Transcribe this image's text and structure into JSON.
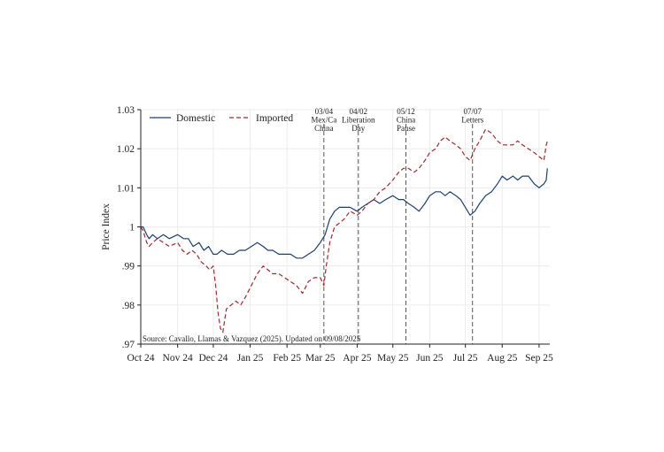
{
  "chart_data": {
    "type": "line",
    "title": "",
    "xlabel": "",
    "ylabel": "Price Index",
    "ylim": [
      0.97,
      1.03
    ],
    "y_ticks": [
      0.97,
      0.98,
      0.99,
      1.0,
      1.01,
      1.02,
      1.03
    ],
    "y_tick_labels": [
      ".97",
      ".98",
      ".99",
      "1",
      "1.01",
      "1.02",
      "1.03"
    ],
    "x_tick_labels": [
      "Oct 24",
      "Nov 24",
      "Dec 24",
      "Jan 25",
      "Feb 25",
      "Mar 25",
      "Apr 25",
      "May 25",
      "Jun 25",
      "Jul 25",
      "Aug 25",
      "Sep 25"
    ],
    "x_tick_dates": [
      "2024-10-01",
      "2024-11-01",
      "2024-12-01",
      "2025-01-01",
      "2025-02-01",
      "2025-03-01",
      "2025-04-01",
      "2025-05-01",
      "2025-06-01",
      "2025-07-01",
      "2025-08-01",
      "2025-09-01"
    ],
    "xlim": [
      "2024-10-01",
      "2025-09-10"
    ],
    "grid": true,
    "legend_position": "top-left",
    "series": [
      {
        "name": "Domestic",
        "style": "solid",
        "color": "#1f3f6e",
        "x": [
          "2024-10-01",
          "2024-10-03",
          "2024-10-06",
          "2024-10-08",
          "2024-10-11",
          "2024-10-15",
          "2024-10-20",
          "2024-10-25",
          "2024-11-01",
          "2024-11-06",
          "2024-11-10",
          "2024-11-14",
          "2024-11-19",
          "2024-11-23",
          "2024-11-27",
          "2024-12-01",
          "2024-12-04",
          "2024-12-08",
          "2024-12-13",
          "2024-12-18",
          "2024-12-23",
          "2024-12-28",
          "2025-01-02",
          "2025-01-07",
          "2025-01-12",
          "2025-01-16",
          "2025-01-20",
          "2025-01-25",
          "2025-01-30",
          "2025-02-04",
          "2025-02-09",
          "2025-02-14",
          "2025-02-19",
          "2025-02-24",
          "2025-03-01",
          "2025-03-05",
          "2025-03-09",
          "2025-03-13",
          "2025-03-17",
          "2025-03-21",
          "2025-03-26",
          "2025-04-01",
          "2025-04-05",
          "2025-04-10",
          "2025-04-15",
          "2025-04-20",
          "2025-04-25",
          "2025-05-01",
          "2025-05-06",
          "2025-05-10",
          "2025-05-14",
          "2025-05-19",
          "2025-05-23",
          "2025-05-28",
          "2025-06-01",
          "2025-06-06",
          "2025-06-10",
          "2025-06-14",
          "2025-06-18",
          "2025-06-23",
          "2025-06-27",
          "2025-07-01",
          "2025-07-05",
          "2025-07-09",
          "2025-07-13",
          "2025-07-18",
          "2025-07-23",
          "2025-07-28",
          "2025-08-01",
          "2025-08-05",
          "2025-08-10",
          "2025-08-14",
          "2025-08-18",
          "2025-08-23",
          "2025-08-28",
          "2025-09-01",
          "2025-09-05",
          "2025-09-07",
          "2025-09-08"
        ],
        "values": [
          1.0,
          1.0,
          0.998,
          0.997,
          0.998,
          0.997,
          0.998,
          0.997,
          0.998,
          0.997,
          0.997,
          0.995,
          0.996,
          0.994,
          0.995,
          0.993,
          0.993,
          0.994,
          0.993,
          0.993,
          0.994,
          0.994,
          0.995,
          0.996,
          0.995,
          0.994,
          0.994,
          0.993,
          0.993,
          0.993,
          0.992,
          0.992,
          0.993,
          0.994,
          0.996,
          0.998,
          1.002,
          1.004,
          1.005,
          1.005,
          1.005,
          1.004,
          1.005,
          1.006,
          1.007,
          1.006,
          1.007,
          1.008,
          1.007,
          1.007,
          1.006,
          1.005,
          1.004,
          1.006,
          1.008,
          1.009,
          1.009,
          1.008,
          1.009,
          1.008,
          1.007,
          1.005,
          1.003,
          1.004,
          1.006,
          1.008,
          1.009,
          1.011,
          1.013,
          1.012,
          1.013,
          1.012,
          1.013,
          1.013,
          1.011,
          1.01,
          1.011,
          1.012,
          1.015
        ]
      },
      {
        "name": "Imported",
        "style": "dashed",
        "color": "#9b2a2e",
        "x": [
          "2024-10-01",
          "2024-10-03",
          "2024-10-06",
          "2024-10-08",
          "2024-10-11",
          "2024-10-15",
          "2024-10-20",
          "2024-10-25",
          "2024-11-01",
          "2024-11-05",
          "2024-11-09",
          "2024-11-13",
          "2024-11-17",
          "2024-11-21",
          "2024-11-25",
          "2024-11-28",
          "2024-12-01",
          "2024-12-03",
          "2024-12-05",
          "2024-12-07",
          "2024-12-09",
          "2024-12-12",
          "2024-12-16",
          "2024-12-20",
          "2024-12-24",
          "2024-12-28",
          "2025-01-02",
          "2025-01-07",
          "2025-01-12",
          "2025-01-16",
          "2025-01-20",
          "2025-01-25",
          "2025-01-30",
          "2025-02-04",
          "2025-02-09",
          "2025-02-14",
          "2025-02-19",
          "2025-02-24",
          "2025-03-01",
          "2025-03-04",
          "2025-03-06",
          "2025-03-09",
          "2025-03-13",
          "2025-03-17",
          "2025-03-21",
          "2025-03-26",
          "2025-04-01",
          "2025-04-05",
          "2025-04-10",
          "2025-04-15",
          "2025-04-20",
          "2025-04-25",
          "2025-05-01",
          "2025-05-06",
          "2025-05-10",
          "2025-05-14",
          "2025-05-19",
          "2025-05-23",
          "2025-05-28",
          "2025-06-01",
          "2025-06-06",
          "2025-06-10",
          "2025-06-14",
          "2025-06-18",
          "2025-06-23",
          "2025-06-27",
          "2025-07-01",
          "2025-07-05",
          "2025-07-09",
          "2025-07-13",
          "2025-07-18",
          "2025-07-23",
          "2025-07-28",
          "2025-08-01",
          "2025-08-05",
          "2025-08-10",
          "2025-08-14",
          "2025-08-18",
          "2025-08-23",
          "2025-08-28",
          "2025-09-01",
          "2025-09-05",
          "2025-09-07",
          "2025-09-08"
        ],
        "values": [
          1.0,
          0.999,
          0.996,
          0.995,
          0.996,
          0.997,
          0.996,
          0.995,
          0.996,
          0.994,
          0.993,
          0.994,
          0.993,
          0.991,
          0.99,
          0.989,
          0.99,
          0.985,
          0.978,
          0.974,
          0.973,
          0.979,
          0.98,
          0.981,
          0.98,
          0.982,
          0.985,
          0.988,
          0.99,
          0.989,
          0.988,
          0.988,
          0.987,
          0.986,
          0.985,
          0.983,
          0.986,
          0.987,
          0.987,
          0.985,
          0.99,
          0.996,
          1.0,
          1.001,
          1.002,
          1.004,
          1.003,
          1.004,
          1.006,
          1.007,
          1.009,
          1.01,
          1.012,
          1.014,
          1.015,
          1.015,
          1.014,
          1.015,
          1.017,
          1.019,
          1.02,
          1.022,
          1.023,
          1.022,
          1.021,
          1.02,
          1.018,
          1.017,
          1.02,
          1.022,
          1.025,
          1.024,
          1.022,
          1.021,
          1.021,
          1.021,
          1.022,
          1.021,
          1.02,
          1.019,
          1.018,
          1.017,
          1.021,
          1.022
        ]
      }
    ],
    "events": [
      {
        "date": "2025-03-04",
        "label": [
          "03/04",
          "Mex/Ca",
          "China"
        ]
      },
      {
        "date": "2025-04-02",
        "label": [
          "04/02",
          "Liberation",
          "Day"
        ]
      },
      {
        "date": "2025-05-12",
        "label": [
          "05/12",
          "China",
          "Pause"
        ]
      },
      {
        "date": "2025-07-07",
        "label": [
          "07/07",
          "Letters"
        ]
      }
    ],
    "note": "Source: Cavallo, Llamas & Vazquez (2025). Updated on 09/08/2025"
  }
}
